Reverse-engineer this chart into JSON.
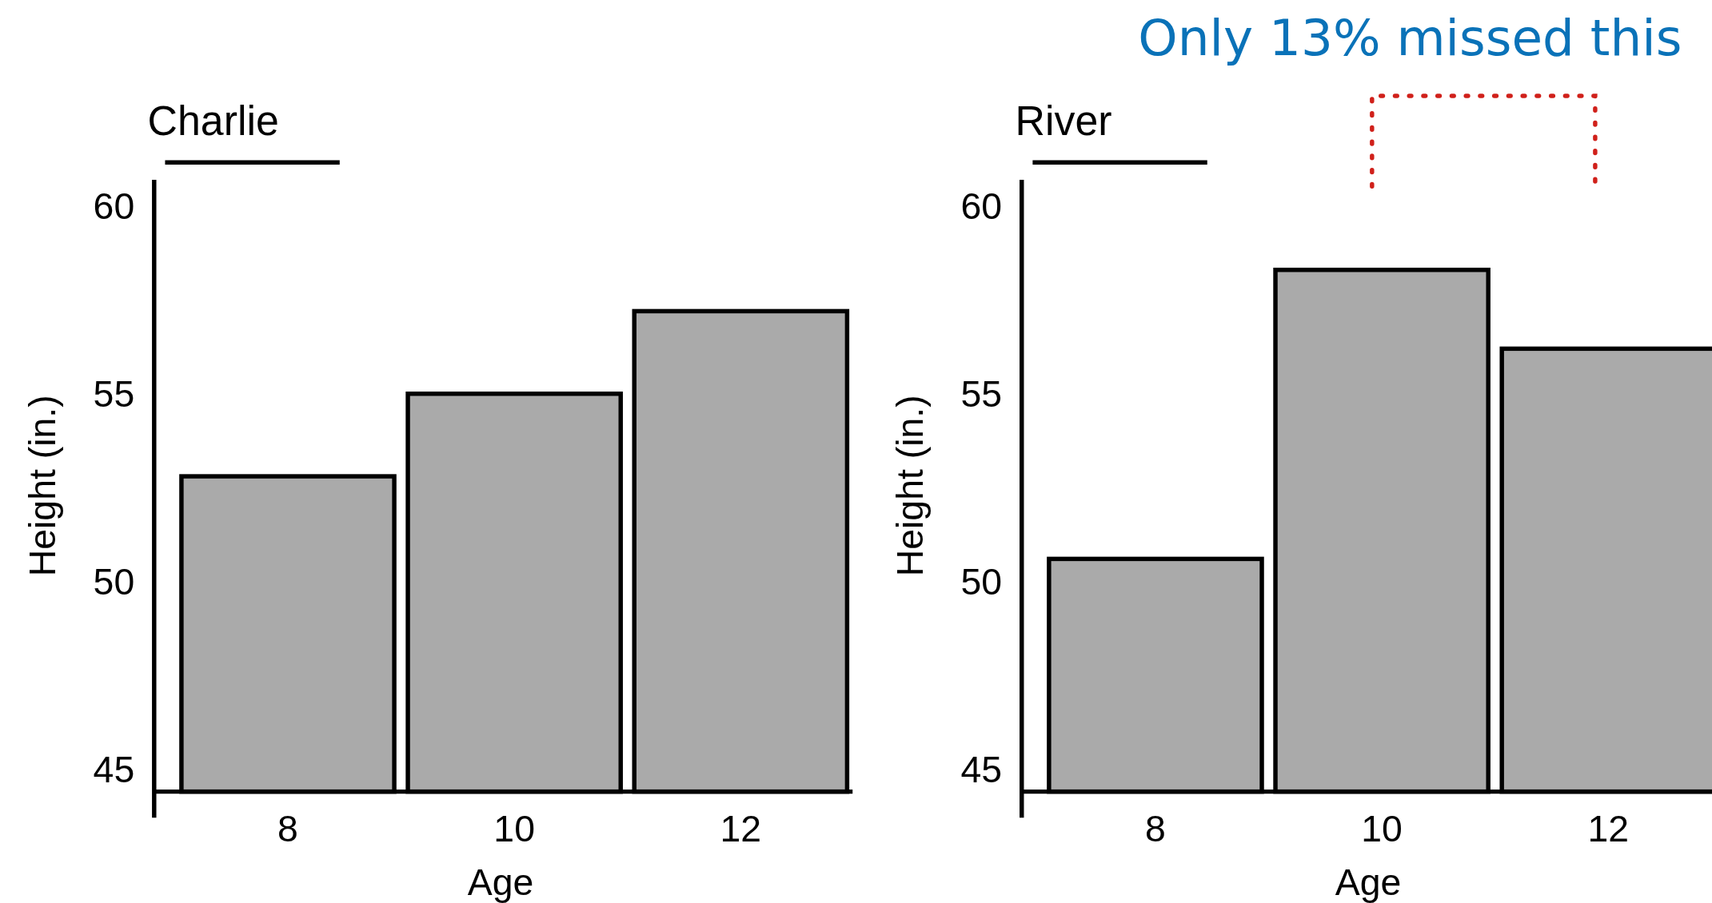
{
  "chart_data": [
    {
      "type": "bar",
      "title": "Charlie",
      "xlabel": "Age",
      "ylabel": "Height (in.)",
      "categories": [
        "8",
        "10",
        "12"
      ],
      "values": [
        52.8,
        55.0,
        57.2
      ],
      "color": "#aaaaaa",
      "ylim": [
        44.4,
        60.7
      ],
      "yticks": [
        45,
        50,
        55,
        60
      ]
    },
    {
      "type": "bar",
      "title": "River",
      "xlabel": "Age",
      "ylabel": "Height (in.)",
      "categories": [
        "8",
        "10",
        "12"
      ],
      "values": [
        50.6,
        58.3,
        56.2
      ],
      "color": "#aaaaaa",
      "ylim": [
        44.4,
        60.7
      ],
      "yticks": [
        45,
        50,
        55,
        60
      ],
      "annotations": [
        "Only 13% missed this"
      ]
    }
  ]
}
